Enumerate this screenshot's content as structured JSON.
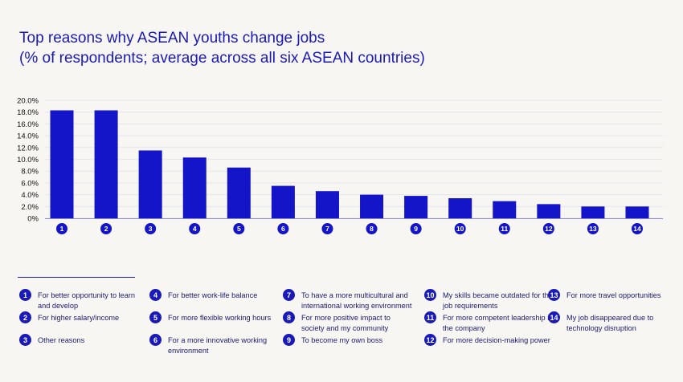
{
  "title": "Top reasons why ASEAN youths change jobs",
  "subtitle": "(% of respondents; average across all six ASEAN countries)",
  "colors": {
    "bar": "#1414c8",
    "text": "#1a1ab8",
    "grid": "#e4e3ee"
  },
  "chart_data": {
    "type": "bar",
    "title": "Top reasons why ASEAN youths change jobs",
    "subtitle": "(% of respondents; average across all six ASEAN countries)",
    "categories": [
      "1",
      "2",
      "3",
      "4",
      "5",
      "6",
      "7",
      "8",
      "9",
      "10",
      "11",
      "12",
      "13",
      "14"
    ],
    "values": [
      18.3,
      18.3,
      11.5,
      10.3,
      8.6,
      5.5,
      4.6,
      4.0,
      3.8,
      3.4,
      2.9,
      2.4,
      2.0,
      2.0
    ],
    "ylim": [
      0,
      20
    ],
    "yticks": [
      "0%",
      "2.0%",
      "4.0%",
      "6.0%",
      "8.0%",
      "10.0%",
      "12.0%",
      "14.0%",
      "16.0%",
      "18.0%",
      "20.0%"
    ],
    "grid": true,
    "legend_position": "bottom"
  },
  "legend": [
    {
      "num": "1",
      "text": "For better opportunity to learn and develop"
    },
    {
      "num": "2",
      "text": "For higher salary/income"
    },
    {
      "num": "3",
      "text": "Other reasons"
    },
    {
      "num": "4",
      "text": "For better work-life balance"
    },
    {
      "num": "5",
      "text": "For more flexible working hours"
    },
    {
      "num": "6",
      "text": "For a more innovative working environment"
    },
    {
      "num": "7",
      "text": "To have a more multicultural and international working environment"
    },
    {
      "num": "8",
      "text": "For more positive impact to society and my community"
    },
    {
      "num": "9",
      "text": "To become my own boss"
    },
    {
      "num": "10",
      "text": "My skills became outdated for the job requirements"
    },
    {
      "num": "11",
      "text": "For more competent leadership in the company"
    },
    {
      "num": "12",
      "text": "For more decision-making power"
    },
    {
      "num": "13",
      "text": "For more travel opportunities"
    },
    {
      "num": "14",
      "text": "My job disappeared due to technology disruption"
    }
  ]
}
